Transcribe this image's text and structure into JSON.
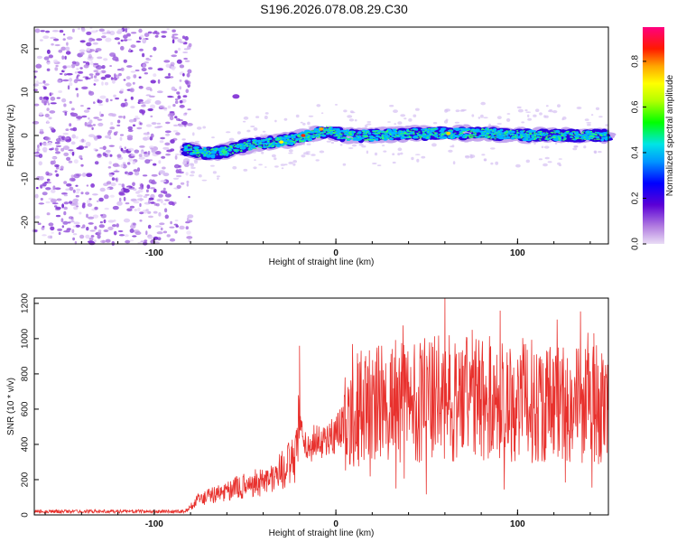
{
  "title": "S196.2026.078.08.29.C30",
  "chart_data": [
    {
      "type": "heatmap",
      "name": "spectrogram",
      "xlabel": "Height of straight line (km)",
      "ylabel": "Frequency (Hz)",
      "xlim": [
        -166,
        150
      ],
      "ylim": [
        -25,
        25
      ],
      "xticks": [
        -100,
        0,
        100
      ],
      "yticks": [
        -20,
        -10,
        0,
        10,
        20
      ],
      "colorbar": {
        "label": "Normalized spectral amplitude",
        "range": [
          0,
          0.95
        ],
        "ticks": [
          "0.0",
          "0.2",
          "0.4",
          "0.6",
          "0.8"
        ],
        "tick_values": [
          0.0,
          0.2,
          0.4,
          0.6,
          0.8
        ]
      },
      "noise_region_x": [
        -166,
        -83
      ],
      "signal_track": {
        "x": [
          -83,
          -75,
          -65,
          -55,
          -45,
          -35,
          -25,
          -15,
          -5,
          5,
          20,
          40,
          60,
          80,
          100,
          120,
          150
        ],
        "y": [
          -3,
          -4,
          -4,
          -3,
          -2,
          -1.5,
          -1,
          0,
          1,
          0,
          0,
          0.5,
          0.5,
          0.5,
          0,
          0,
          0
        ]
      }
    },
    {
      "type": "line",
      "name": "snr",
      "xlabel": "Height of straight line (km)",
      "ylabel": "SNR (10 * v/v)",
      "xlim": [
        -166,
        150
      ],
      "ylim": [
        0,
        1230
      ],
      "xticks": [
        -100,
        0,
        100
      ],
      "yticks": [
        0,
        200,
        400,
        600,
        800,
        1000,
        1200
      ],
      "color": "#e8312d",
      "envelope": {
        "x": [
          -166,
          -83,
          -75,
          -55,
          -35,
          -22,
          -20,
          -18,
          -10,
          -5,
          0,
          5,
          10,
          20,
          30,
          40,
          60,
          80,
          100,
          120,
          140,
          150
        ],
        "y": [
          20,
          20,
          90,
          150,
          210,
          320,
          550,
          380,
          420,
          430,
          460,
          540,
          600,
          620,
          640,
          650,
          660,
          660,
          650,
          640,
          630,
          620
        ]
      },
      "spikes": [
        {
          "x": -20,
          "y": 960
        },
        {
          "x": 60,
          "y": 1230
        },
        {
          "x": 37,
          "y": 1075
        },
        {
          "x": 142,
          "y": 1030
        },
        {
          "x": 75,
          "y": 1050
        }
      ]
    }
  ]
}
